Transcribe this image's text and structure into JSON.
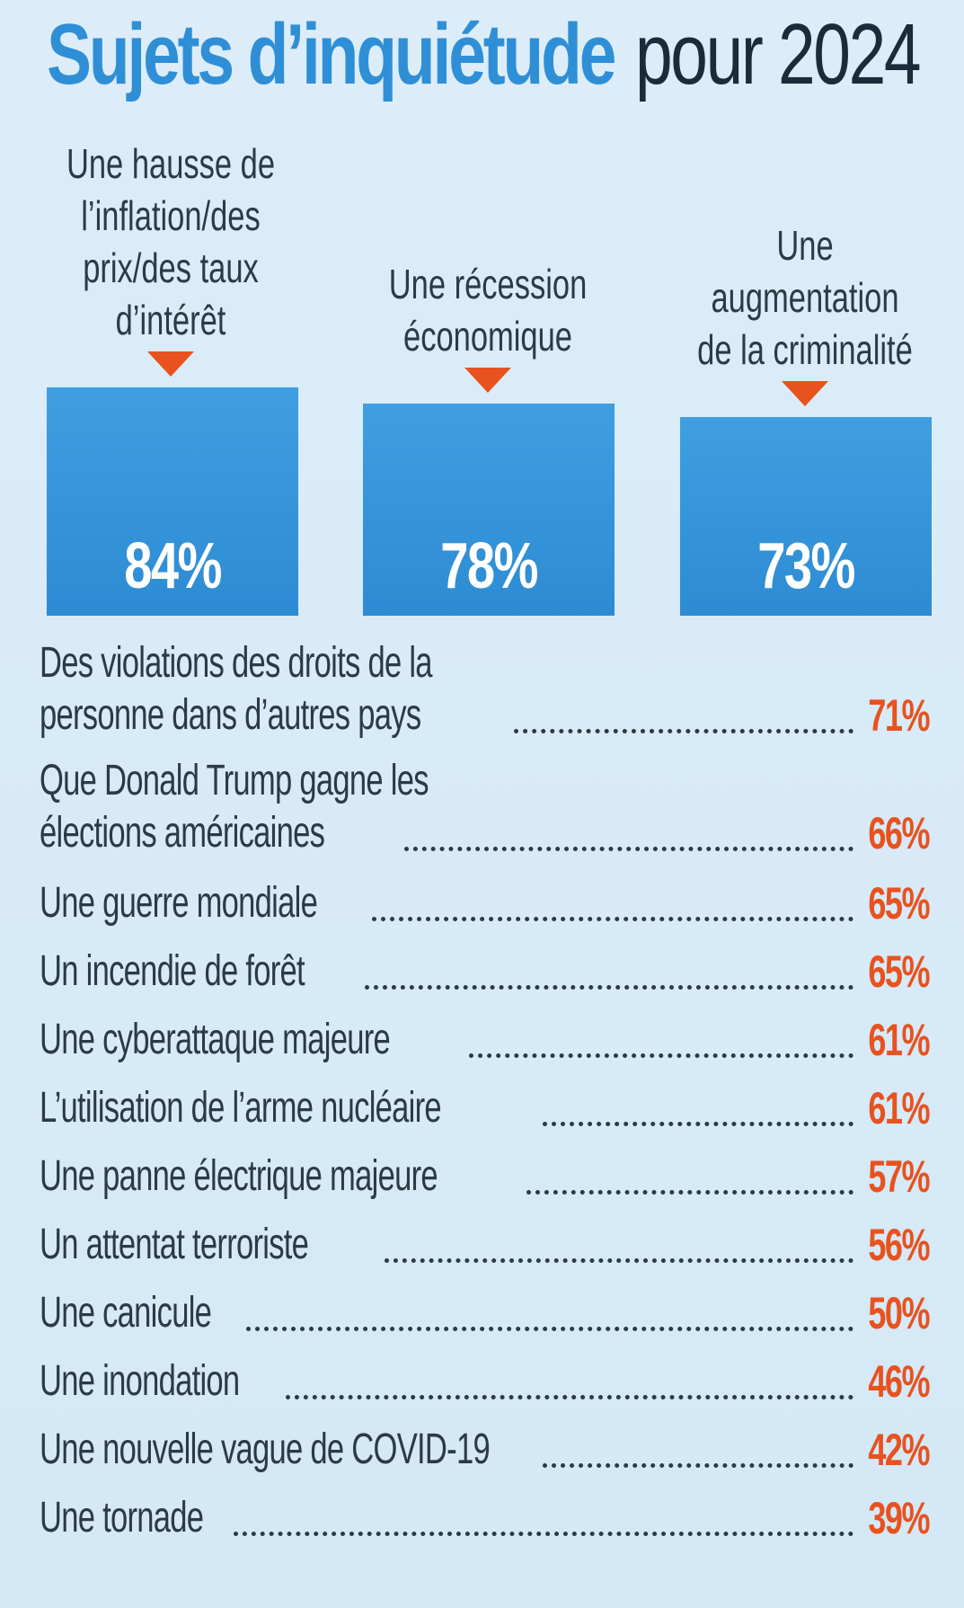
{
  "title": {
    "strong": "Sujets d’inquiétude",
    "light": "pour 2024"
  },
  "colors": {
    "accent_blue": "#2f8fd6",
    "accent_orange": "#e8521f",
    "text_dark": "#2b3a46",
    "background": "#d9ecf8"
  },
  "chart_data": {
    "type": "bar",
    "title": "Sujets d’inquiétude pour 2024",
    "top_categories": [
      {
        "label_lines": [
          "Une hausse de",
          "l’inflation/des",
          "prix/des taux",
          "d’intérêt"
        ],
        "value": 84,
        "value_label": "84%"
      },
      {
        "label_lines": [
          "Une récession",
          "économique"
        ],
        "value": 78,
        "value_label": "78%"
      },
      {
        "label_lines": [
          "Une",
          "augmentation",
          "de la criminalité"
        ],
        "value": 73,
        "value_label": "73%"
      }
    ],
    "list_items": [
      {
        "lines": [
          "Des violations des droits de la",
          "personne dans d’autres pays"
        ],
        "value": 71,
        "value_label": "71%"
      },
      {
        "lines": [
          "Que Donald Trump gagne les",
          "élections américaines"
        ],
        "value": 66,
        "value_label": "66%"
      },
      {
        "lines": [
          "Une guerre mondiale"
        ],
        "value": 65,
        "value_label": "65%"
      },
      {
        "lines": [
          "Un incendie de forêt"
        ],
        "value": 65,
        "value_label": "65%"
      },
      {
        "lines": [
          "Une cyberattaque majeure"
        ],
        "value": 61,
        "value_label": "61%"
      },
      {
        "lines": [
          "L’utilisation de l’arme nucléaire"
        ],
        "value": 61,
        "value_label": "61%"
      },
      {
        "lines": [
          "Une panne électrique majeure"
        ],
        "value": 57,
        "value_label": "57%"
      },
      {
        "lines": [
          "Un attentat terroriste"
        ],
        "value": 56,
        "value_label": "56%"
      },
      {
        "lines": [
          "Une canicule"
        ],
        "value": 50,
        "value_label": "50%"
      },
      {
        "lines": [
          "Une inondation"
        ],
        "value": 46,
        "value_label": "46%"
      },
      {
        "lines": [
          "Une nouvelle vague de COVID-19"
        ],
        "value": 42,
        "value_label": "42%"
      },
      {
        "lines": [
          "Une tornade"
        ],
        "value": 39,
        "value_label": "39%"
      }
    ],
    "units": "%"
  }
}
